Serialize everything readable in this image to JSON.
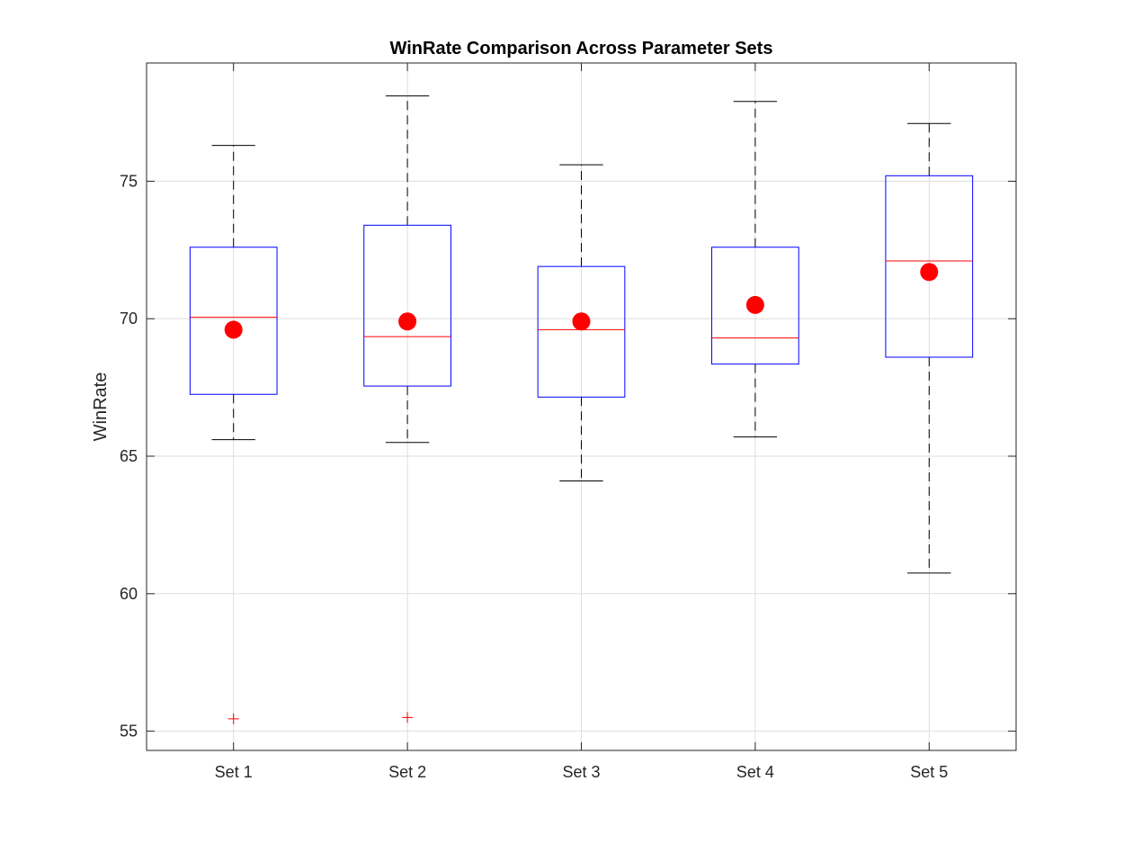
{
  "chart_data": {
    "type": "box",
    "title": "WinRate Comparison Across Parameter Sets",
    "xlabel": "",
    "ylabel": "WinRate",
    "categories": [
      "Set 1",
      "Set 2",
      "Set 3",
      "Set 4",
      "Set 5"
    ],
    "ylim": [
      54.3,
      79.3
    ],
    "yticks": [
      55,
      60,
      65,
      70,
      75
    ],
    "grid": true,
    "boxes": [
      {
        "whisker_low": 65.6,
        "q1": 67.25,
        "median": 70.05,
        "q3": 72.6,
        "whisker_high": 76.3,
        "mean": 69.6,
        "outliers": [
          55.45
        ]
      },
      {
        "whisker_low": 65.5,
        "q1": 67.55,
        "median": 69.35,
        "q3": 73.4,
        "whisker_high": 78.1,
        "mean": 69.9,
        "outliers": [
          55.5
        ]
      },
      {
        "whisker_low": 64.1,
        "q1": 67.15,
        "median": 69.6,
        "q3": 71.9,
        "whisker_high": 75.6,
        "mean": 69.9,
        "outliers": []
      },
      {
        "whisker_low": 65.7,
        "q1": 68.35,
        "median": 69.3,
        "q3": 72.6,
        "whisker_high": 77.9,
        "mean": 70.5,
        "outliers": []
      },
      {
        "whisker_low": 60.75,
        "q1": 68.6,
        "median": 72.1,
        "q3": 75.2,
        "whisker_high": 77.1,
        "mean": 71.7,
        "outliers": []
      }
    ],
    "colors": {
      "box": "#0000ff",
      "median": "#ff0000",
      "mean": "#ff0000",
      "outlier": "#ff0000",
      "whisker": "#000000",
      "grid": "#dedede",
      "axis": "#262626"
    }
  }
}
